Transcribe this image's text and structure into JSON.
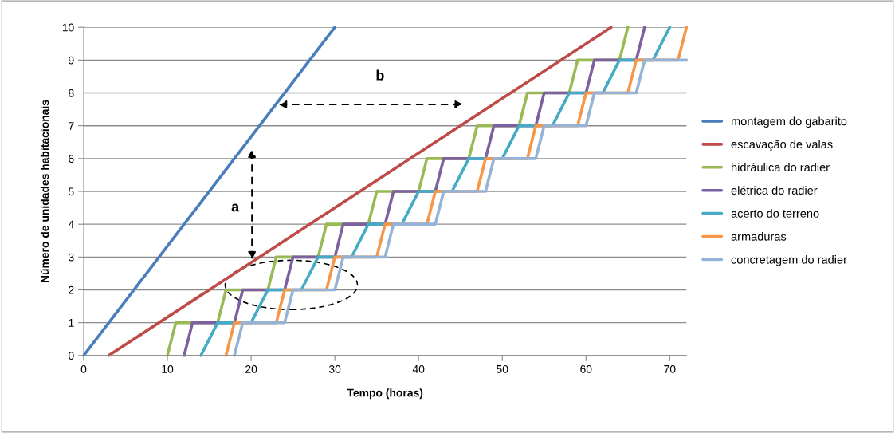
{
  "chart_data": {
    "type": "line",
    "xlabel": "Tempo (horas)",
    "ylabel": "Número de unidades habitacionais",
    "xlim": [
      0,
      72
    ],
    "ylim": [
      0,
      10
    ],
    "xticks": [
      0,
      10,
      20,
      30,
      40,
      50,
      60,
      70
    ],
    "yticks": [
      0,
      1,
      2,
      3,
      4,
      5,
      6,
      7,
      8,
      9,
      10
    ],
    "grid": "y",
    "legend": "right",
    "marker": "none",
    "line_style": "solid",
    "annotations": [
      {
        "text": "a",
        "x": 18.1,
        "y": 4.5
      },
      {
        "text": "b",
        "x": 35.4,
        "y": 8.5
      }
    ],
    "series": [
      {
        "name": "montagem do gabarito",
        "color": "#4a7ebb",
        "x": [
          0,
          30
        ],
        "values": [
          0,
          10
        ]
      },
      {
        "name": "escavação de valas",
        "color": "#be4b48",
        "x": [
          3,
          63
        ],
        "values": [
          0,
          10
        ]
      },
      {
        "name": "hidráulica do radier",
        "color": "#98b954",
        "x": [
          10,
          11,
          16,
          17,
          22,
          23,
          28,
          29,
          34,
          35,
          40,
          41,
          46,
          47,
          52,
          53,
          58,
          59,
          64,
          65
        ],
        "values": [
          0,
          1,
          1,
          2,
          2,
          3,
          3,
          4,
          4,
          5,
          5,
          6,
          6,
          7,
          7,
          8,
          8,
          9,
          9,
          10
        ]
      },
      {
        "name": "elétrica do radier",
        "color": "#7d60a0",
        "x": [
          12,
          13,
          18,
          19,
          24,
          25,
          30,
          31,
          36,
          37,
          42,
          43,
          48,
          49,
          54,
          55,
          60,
          61,
          66,
          67
        ],
        "values": [
          0,
          1,
          1,
          2,
          2,
          3,
          3,
          4,
          4,
          5,
          5,
          6,
          6,
          7,
          7,
          8,
          8,
          9,
          9,
          10
        ]
      },
      {
        "name": "acerto do terreno",
        "color": "#46aac5",
        "x": [
          14,
          16,
          20,
          22,
          26,
          28,
          32,
          34,
          38,
          40,
          44,
          46,
          50,
          52,
          56,
          58,
          62,
          64,
          68,
          70
        ],
        "values": [
          0,
          1,
          1,
          2,
          2,
          3,
          3,
          4,
          4,
          5,
          5,
          6,
          6,
          7,
          7,
          8,
          8,
          9,
          9,
          10
        ]
      },
      {
        "name": "armaduras",
        "color": "#f79646",
        "x": [
          17,
          18,
          23,
          24,
          29,
          30,
          35,
          36,
          41,
          42,
          47,
          48,
          53,
          54,
          59,
          60,
          65,
          66,
          71,
          72
        ],
        "values": [
          0,
          1,
          1,
          2,
          2,
          3,
          3,
          4,
          4,
          5,
          5,
          6,
          6,
          7,
          7,
          8,
          8,
          9,
          9,
          10
        ]
      },
      {
        "name": "concretagem do radier",
        "color": "#95b3d7",
        "x": [
          18,
          19,
          24,
          25,
          30,
          31,
          36,
          37,
          42,
          43,
          48,
          49,
          54,
          55,
          60,
          61,
          66,
          67,
          72
        ],
        "values": [
          0,
          1,
          1,
          2,
          2,
          3,
          3,
          4,
          4,
          5,
          5,
          6,
          6,
          7,
          7,
          8,
          8,
          9,
          9
        ]
      }
    ]
  }
}
